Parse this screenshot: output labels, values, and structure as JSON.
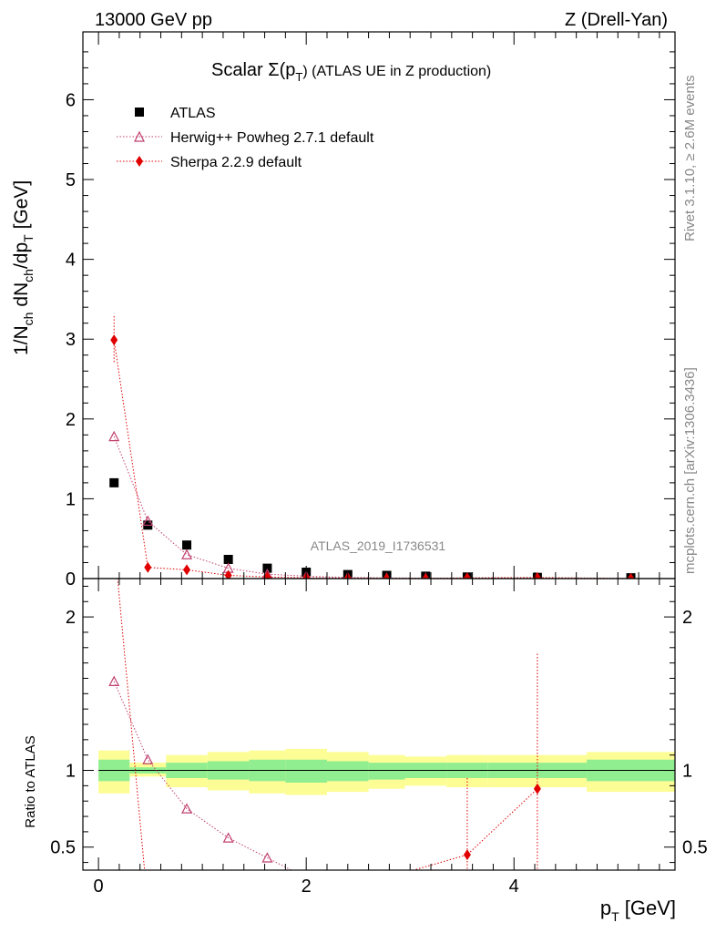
{
  "header": {
    "left": "13000 GeV pp",
    "right": "Z (Drell-Yan)"
  },
  "side_labels": {
    "rivet": "Rivet 3.1.10, ≥ 2.6M events",
    "mcplots": "mcplots.cern.ch [arXiv:1306.3436]"
  },
  "chart_data": [
    {
      "type": "scatter",
      "title_parts": {
        "lead": "Scalar Σ(p",
        "sub": "T",
        "tail": ") (ATLAS UE in Z production)"
      },
      "ylabel_parts": [
        "1/N",
        "ch",
        " dN",
        "ch",
        "/dp",
        "T",
        " [GeV]"
      ],
      "watermark": "ATLAS_2019_I1736531",
      "xlim": [
        -0.15,
        5.55
      ],
      "ylim": [
        0,
        6.85
      ],
      "yticks": [
        0,
        1,
        2,
        3,
        4,
        5,
        6
      ],
      "ytick_labels": [
        "0",
        "1",
        "2",
        "3",
        "4",
        "5",
        "6"
      ],
      "grid": false,
      "legend_position": "top-left",
      "x_edges": [
        0,
        0.3,
        0.65,
        1.05,
        1.45,
        1.8,
        2.2,
        2.6,
        2.95,
        3.35,
        3.75,
        4.7,
        5.55
      ],
      "series": [
        {
          "name": "ATLAS",
          "style": "data",
          "color": "#000000",
          "x": [
            0.15,
            0.475,
            0.85,
            1.25,
            1.625,
            2.0,
            2.4,
            2.775,
            3.15,
            3.55,
            4.225,
            5.125
          ],
          "y": [
            1.2,
            0.67,
            0.42,
            0.24,
            0.13,
            0.08,
            0.05,
            0.04,
            0.03,
            0.02,
            0.015,
            0.01
          ]
        },
        {
          "name": "Herwig++ Powheg 2.7.1 default",
          "style": "triangle",
          "color": "#c0406e",
          "x": [
            0.15,
            0.475,
            0.85,
            1.25,
            1.625,
            2.0,
            2.4,
            2.775,
            3.15,
            3.55,
            4.225,
            5.125
          ],
          "y": [
            1.78,
            0.72,
            0.3,
            0.13,
            0.055,
            0.03,
            0.015,
            0.008,
            0.005,
            0.003,
            0.002,
            0.001
          ]
        },
        {
          "name": "Sherpa 2.2.9 default",
          "style": "diamond",
          "color": "#e00000",
          "x": [
            0.15,
            0.475,
            0.85,
            1.25,
            1.625,
            2.0,
            2.4,
            2.775,
            3.15,
            3.55,
            4.225,
            5.125
          ],
          "y": [
            2.99,
            0.14,
            0.11,
            0.04,
            0.02,
            0.01,
            0.005,
            0.003,
            0.002,
            0.009,
            0.013,
            0.0
          ],
          "yerr": [
            0.3,
            0.0,
            0.0,
            0.0,
            0.0,
            0.0,
            0.0,
            0.0,
            0.0,
            0.0,
            0.0,
            0.0
          ]
        }
      ]
    },
    {
      "type": "line",
      "ylabel": "Ratio to ATLAS",
      "xlabel_parts": {
        "lead": "p",
        "sub": "T",
        "tail": " [GeV]"
      },
      "xlim": [
        -0.15,
        5.55
      ],
      "ylim": [
        0.35,
        2.25
      ],
      "xticks": [
        0,
        2,
        4
      ],
      "xtick_labels": [
        "0",
        "2",
        "4"
      ],
      "yticks": [
        0.5,
        1,
        2
      ],
      "ytick_labels": [
        "0.5",
        "1",
        "2"
      ],
      "reference_line": 1,
      "bands": {
        "edges": [
          0,
          0.3,
          0.65,
          1.05,
          1.45,
          1.8,
          2.2,
          2.6,
          2.95,
          3.35,
          3.75,
          4.7,
          5.55
        ],
        "outer_low": [
          0.85,
          0.96,
          0.89,
          0.87,
          0.85,
          0.84,
          0.86,
          0.88,
          0.9,
          0.89,
          0.89,
          0.86
        ],
        "outer_high": [
          1.13,
          1.05,
          1.1,
          1.12,
          1.13,
          1.14,
          1.12,
          1.1,
          1.09,
          1.1,
          1.1,
          1.12
        ],
        "inner_low": [
          0.93,
          0.98,
          0.95,
          0.94,
          0.93,
          0.92,
          0.93,
          0.94,
          0.95,
          0.95,
          0.95,
          0.93
        ],
        "inner_high": [
          1.07,
          1.02,
          1.05,
          1.06,
          1.07,
          1.07,
          1.06,
          1.05,
          1.05,
          1.05,
          1.05,
          1.07
        ],
        "outer_color": "#fdfd96",
        "inner_color": "#90ee90"
      },
      "series": [
        {
          "name": "Herwig++ Powheg 2.7.1 default",
          "style": "triangle",
          "color": "#c0406e",
          "x": [
            0.15,
            0.475,
            0.85,
            1.25,
            1.625,
            2.0
          ],
          "y": [
            1.58,
            1.07,
            0.75,
            0.56,
            0.43,
            0.3
          ]
        },
        {
          "name": "Sherpa 2.2.9 default",
          "style": "diamond",
          "color": "#e00000",
          "x": [
            0.15,
            0.475,
            2.775,
            3.55,
            4.225
          ],
          "y": [
            2.5,
            0.12,
            0.3,
            0.45,
            0.88
          ],
          "yerr": [
            0.0,
            0.0,
            0.0,
            0.5,
            0.88
          ]
        }
      ]
    }
  ]
}
